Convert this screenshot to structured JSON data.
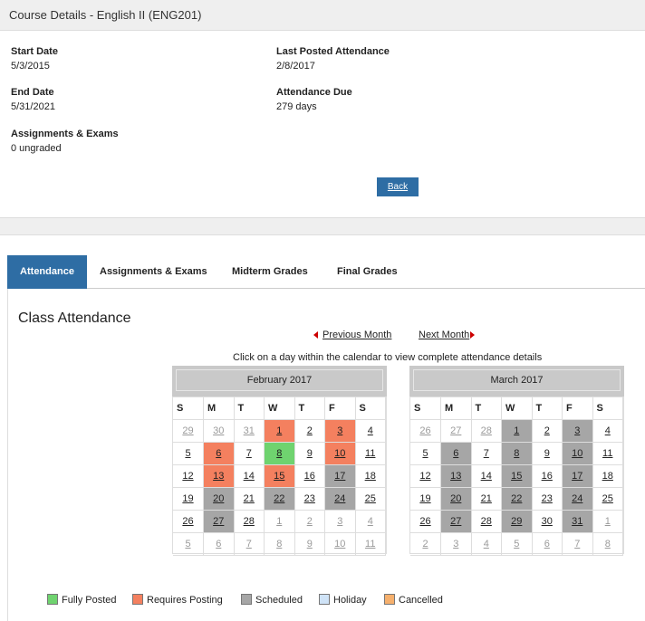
{
  "header": {
    "title": "Course Details - English II (ENG201)"
  },
  "details": {
    "start_date": {
      "label": "Start Date",
      "value": "5/3/2015"
    },
    "last_posted": {
      "label": "Last Posted Attendance",
      "value": "2/8/2017"
    },
    "end_date": {
      "label": "End Date",
      "value": "5/31/2021"
    },
    "attendance_due": {
      "label": "Attendance Due",
      "value": "279 days"
    },
    "assignments": {
      "label": "Assignments & Exams",
      "value": "0 ungraded"
    },
    "back_label": "Back"
  },
  "tabs": [
    {
      "label": "Attendance",
      "active": true
    },
    {
      "label": "Assignments & Exams",
      "active": false
    },
    {
      "label": "Midterm Grades",
      "active": false
    },
    {
      "label": "Final Grades",
      "active": false
    }
  ],
  "section_title": "Class Attendance",
  "nav": {
    "previous": "Previous Month",
    "next": "Next Month"
  },
  "hint": "Click on a day within the calendar to view complete attendance details",
  "weekdays": [
    "S",
    "M",
    "T",
    "W",
    "T",
    "F",
    "S"
  ],
  "calendars": [
    {
      "month": "February 2017",
      "weeks": [
        [
          {
            "d": "29",
            "o": true
          },
          {
            "d": "30",
            "o": true
          },
          {
            "d": "31",
            "o": true
          },
          {
            "d": "1",
            "s": "requires"
          },
          {
            "d": "2"
          },
          {
            "d": "3",
            "s": "requires"
          },
          {
            "d": "4"
          }
        ],
        [
          {
            "d": "5"
          },
          {
            "d": "6",
            "s": "requires"
          },
          {
            "d": "7"
          },
          {
            "d": "8",
            "s": "posted"
          },
          {
            "d": "9"
          },
          {
            "d": "10",
            "s": "requires"
          },
          {
            "d": "11"
          }
        ],
        [
          {
            "d": "12"
          },
          {
            "d": "13",
            "s": "requires"
          },
          {
            "d": "14"
          },
          {
            "d": "15",
            "s": "requires"
          },
          {
            "d": "16"
          },
          {
            "d": "17",
            "s": "scheduled"
          },
          {
            "d": "18"
          }
        ],
        [
          {
            "d": "19"
          },
          {
            "d": "20",
            "s": "scheduled"
          },
          {
            "d": "21"
          },
          {
            "d": "22",
            "s": "scheduled"
          },
          {
            "d": "23"
          },
          {
            "d": "24",
            "s": "scheduled"
          },
          {
            "d": "25"
          }
        ],
        [
          {
            "d": "26"
          },
          {
            "d": "27",
            "s": "scheduled"
          },
          {
            "d": "28"
          },
          {
            "d": "1",
            "o": true
          },
          {
            "d": "2",
            "o": true
          },
          {
            "d": "3",
            "o": true
          },
          {
            "d": "4",
            "o": true
          }
        ],
        [
          {
            "d": "5",
            "o": true
          },
          {
            "d": "6",
            "o": true
          },
          {
            "d": "7",
            "o": true
          },
          {
            "d": "8",
            "o": true
          },
          {
            "d": "9",
            "o": true
          },
          {
            "d": "10",
            "o": true
          },
          {
            "d": "11",
            "o": true
          }
        ]
      ]
    },
    {
      "month": "March 2017",
      "weeks": [
        [
          {
            "d": "26",
            "o": true
          },
          {
            "d": "27",
            "o": true
          },
          {
            "d": "28",
            "o": true
          },
          {
            "d": "1",
            "s": "scheduled"
          },
          {
            "d": "2"
          },
          {
            "d": "3",
            "s": "scheduled"
          },
          {
            "d": "4"
          }
        ],
        [
          {
            "d": "5"
          },
          {
            "d": "6",
            "s": "scheduled"
          },
          {
            "d": "7"
          },
          {
            "d": "8",
            "s": "scheduled"
          },
          {
            "d": "9"
          },
          {
            "d": "10",
            "s": "scheduled"
          },
          {
            "d": "11"
          }
        ],
        [
          {
            "d": "12"
          },
          {
            "d": "13",
            "s": "scheduled"
          },
          {
            "d": "14"
          },
          {
            "d": "15",
            "s": "scheduled"
          },
          {
            "d": "16"
          },
          {
            "d": "17",
            "s": "scheduled"
          },
          {
            "d": "18"
          }
        ],
        [
          {
            "d": "19"
          },
          {
            "d": "20",
            "s": "scheduled"
          },
          {
            "d": "21"
          },
          {
            "d": "22",
            "s": "scheduled"
          },
          {
            "d": "23"
          },
          {
            "d": "24",
            "s": "scheduled"
          },
          {
            "d": "25"
          }
        ],
        [
          {
            "d": "26"
          },
          {
            "d": "27",
            "s": "scheduled"
          },
          {
            "d": "28"
          },
          {
            "d": "29",
            "s": "scheduled"
          },
          {
            "d": "30"
          },
          {
            "d": "31",
            "s": "scheduled"
          },
          {
            "d": "1",
            "o": true
          }
        ],
        [
          {
            "d": "2",
            "o": true
          },
          {
            "d": "3",
            "o": true
          },
          {
            "d": "4",
            "o": true
          },
          {
            "d": "5",
            "o": true
          },
          {
            "d": "6",
            "o": true
          },
          {
            "d": "7",
            "o": true
          },
          {
            "d": "8",
            "o": true
          }
        ]
      ]
    }
  ],
  "legend": [
    {
      "label": "Fully Posted",
      "color": "#6fd36f"
    },
    {
      "label": "Requires Posting",
      "color": "#f4805f"
    },
    {
      "label": "Scheduled",
      "color": "#a6a6a6"
    },
    {
      "label": "Holiday",
      "color": "#cfe3f7"
    },
    {
      "label": "Cancelled",
      "color": "#f6b06d"
    }
  ]
}
